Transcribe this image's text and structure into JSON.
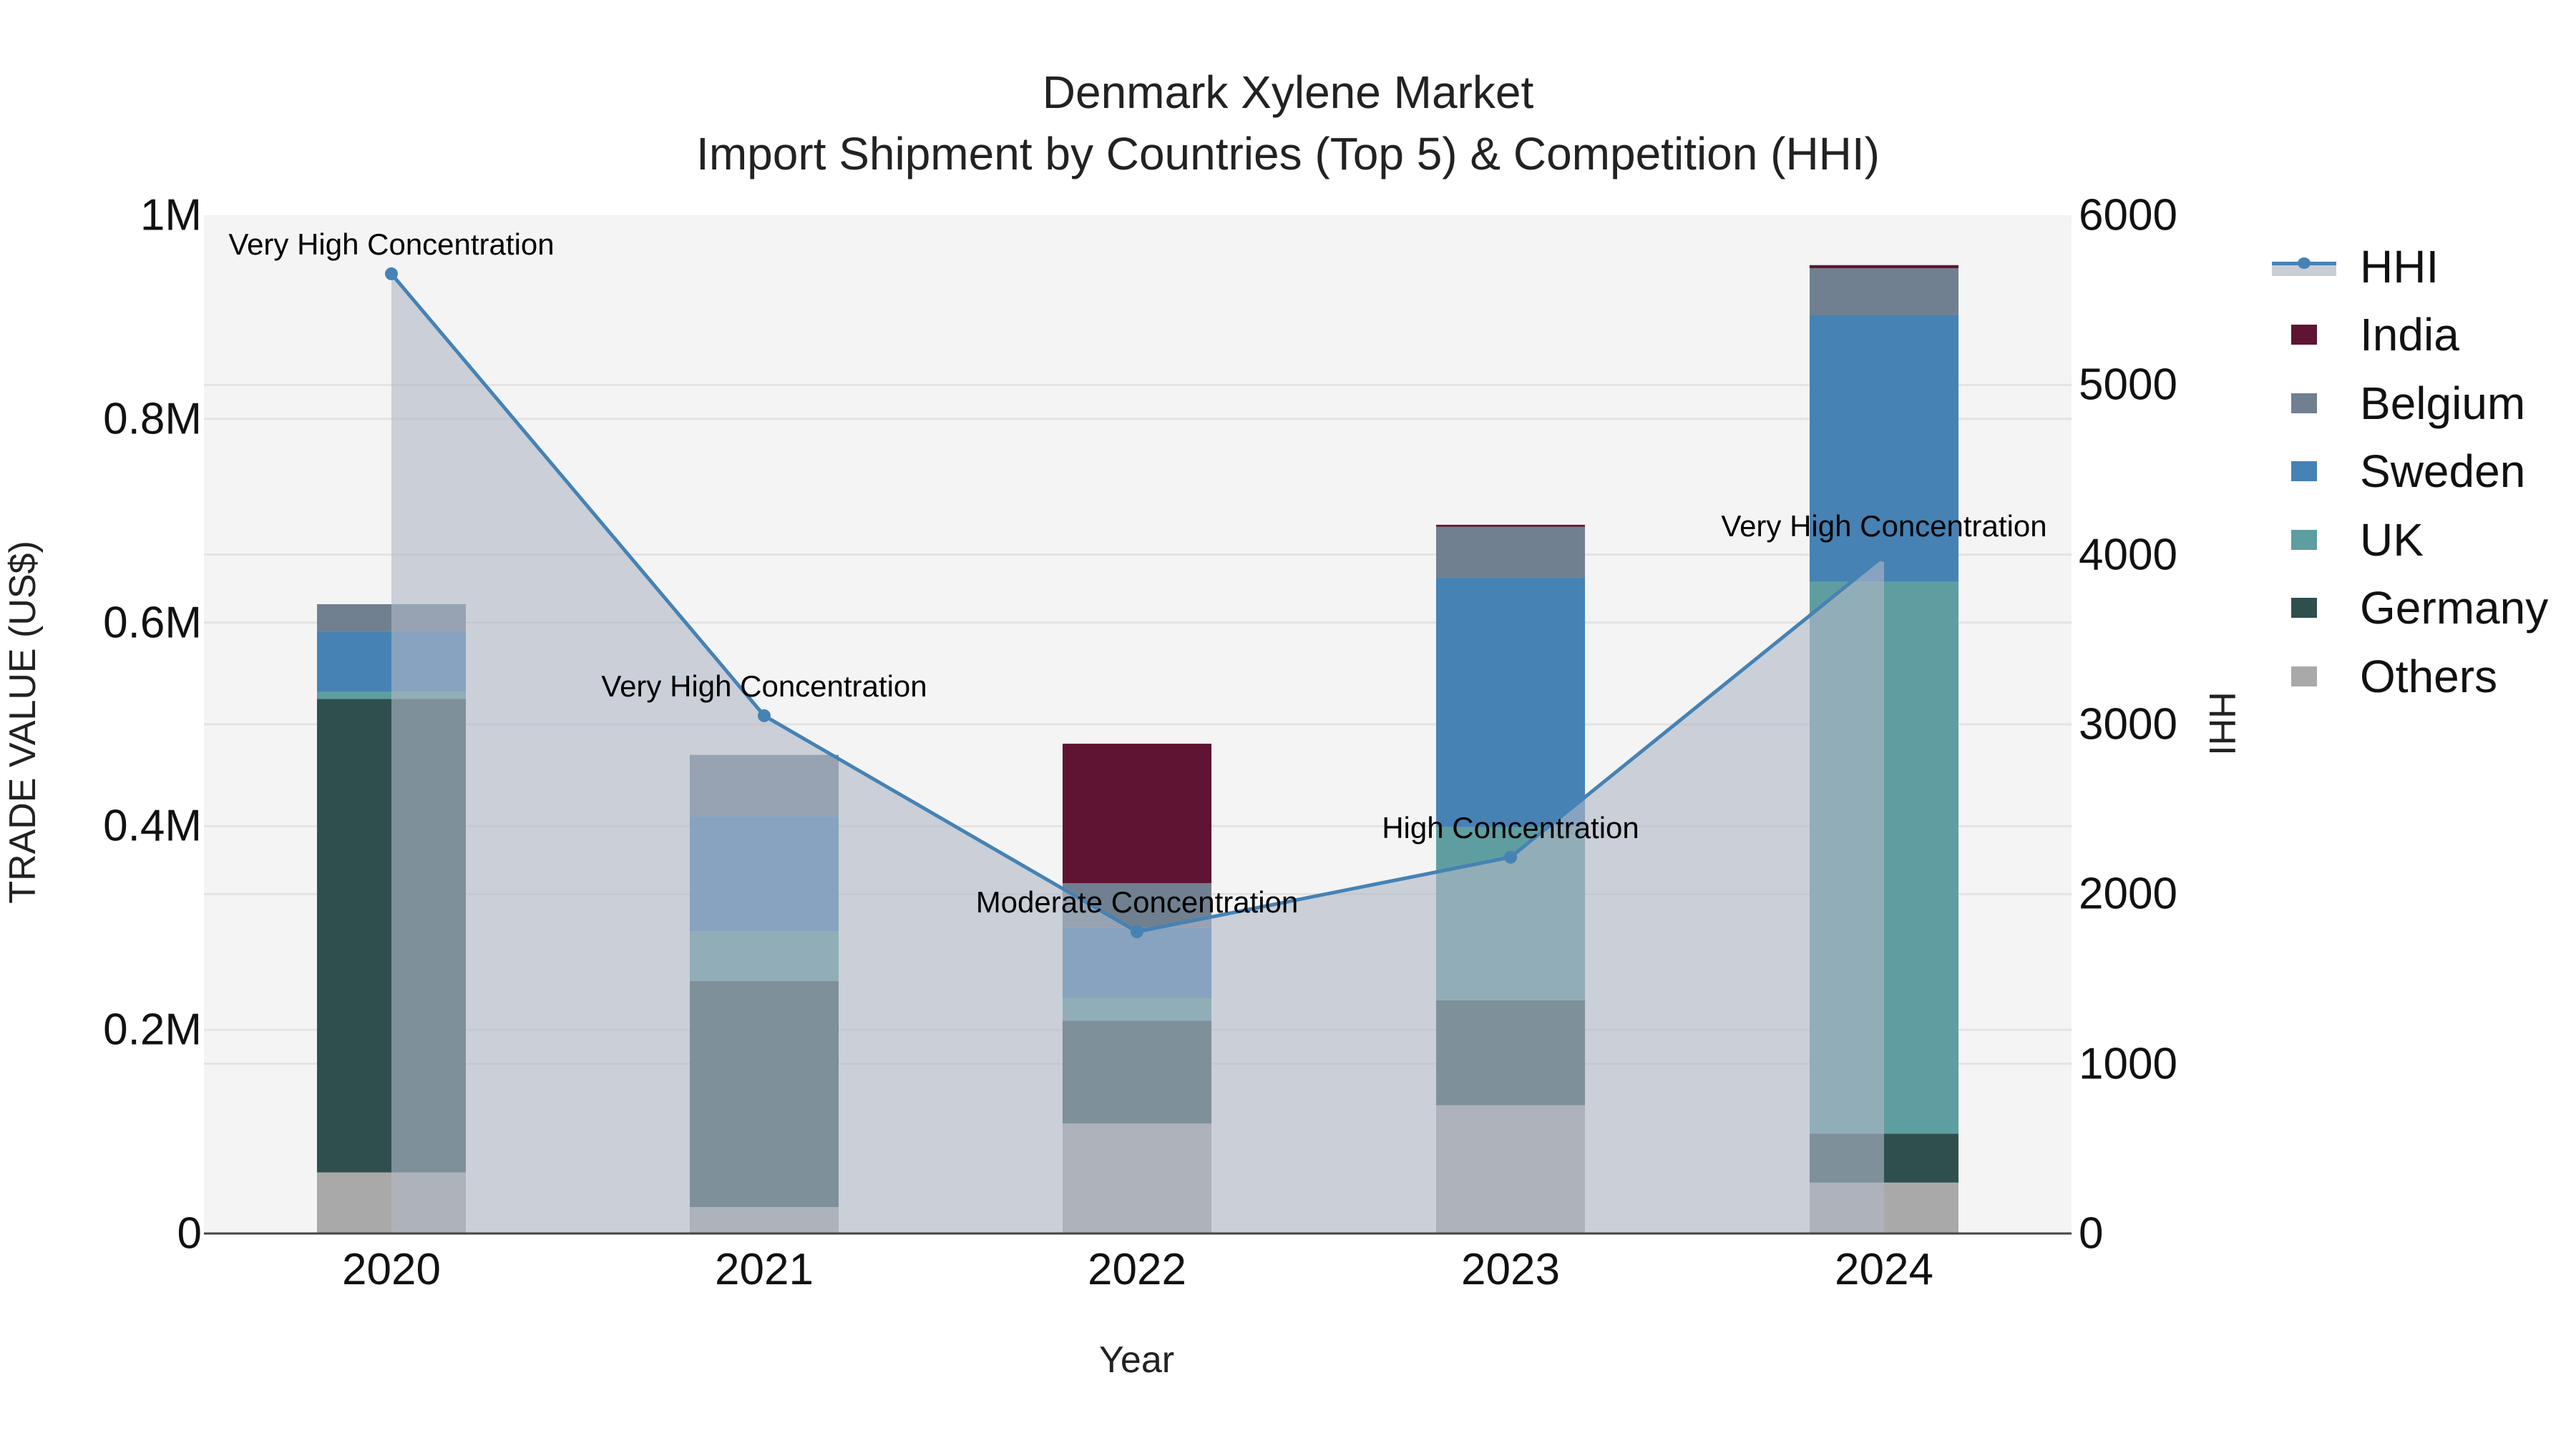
{
  "title": {
    "line1": "Denmark Xylene Market",
    "line2": "Import Shipment by Countries (Top 5) & Competition (HHI)"
  },
  "axes": {
    "x_title": "Year",
    "y_left_title": "TRADE VALUE (US$)",
    "y_right_title": "HHI",
    "y_left_ticks": [
      "0",
      "0.2M",
      "0.4M",
      "0.6M",
      "0.8M",
      "1M"
    ],
    "y_right_ticks": [
      "0",
      "1000",
      "2000",
      "3000",
      "4000",
      "5000",
      "6000"
    ]
  },
  "legend": [
    {
      "name": "HHI",
      "type": "line"
    },
    {
      "name": "India",
      "color": "#5f1434"
    },
    {
      "name": "Belgium",
      "color": "#708090"
    },
    {
      "name": "Sweden",
      "color": "#4682b4"
    },
    {
      "name": "UK",
      "color": "#5f9ea0"
    },
    {
      "name": "Germany",
      "color": "#2f4f4f"
    },
    {
      "name": "Others",
      "color": "#a9a9a9"
    }
  ],
  "colors": {
    "plot_bg": "#f4f4f4",
    "grid": "#e3e3e3",
    "hhi_line": "#4682b4",
    "hhi_fill": "rgba(176,184,198,0.62)"
  },
  "chart_data": {
    "type": "bar",
    "stacked": true,
    "title": "Denmark Xylene Market — Import Shipment by Countries (Top 5) & Competition (HHI)",
    "xlabel": "Year",
    "ylabel": "TRADE VALUE (US$)",
    "y2label": "HHI",
    "ylim": [
      0,
      1000000
    ],
    "y2lim": [
      0,
      6000
    ],
    "grid": true,
    "legend_position": "right",
    "categories": [
      "2020",
      "2021",
      "2022",
      "2023",
      "2024"
    ],
    "series": [
      {
        "name": "Others",
        "color": "#a9a9a9",
        "values": [
          60000,
          26000,
          108000,
          126000,
          50000
        ]
      },
      {
        "name": "Germany",
        "color": "#2f4f4f",
        "values": [
          465000,
          222000,
          101000,
          103000,
          48000
        ]
      },
      {
        "name": "UK",
        "color": "#5f9ea0",
        "values": [
          7000,
          49000,
          22000,
          170000,
          542000
        ]
      },
      {
        "name": "Sweden",
        "color": "#4682b4",
        "values": [
          59000,
          113000,
          69000,
          245000,
          262000
        ]
      },
      {
        "name": "Belgium",
        "color": "#708090",
        "values": [
          27000,
          60000,
          44000,
          50000,
          46000
        ]
      },
      {
        "name": "India",
        "color": "#5f1434",
        "values": [
          0,
          0,
          137000,
          2000,
          3000
        ]
      }
    ],
    "line_series": {
      "name": "HHI",
      "axis": "y2",
      "type": "line+area",
      "color": "#4682b4",
      "values": [
        5655,
        3051,
        1778,
        2217,
        3995
      ]
    },
    "annotations": [
      {
        "x": "2020",
        "text": "Very High Concentration"
      },
      {
        "x": "2021",
        "text": "Very High Concentration"
      },
      {
        "x": "2022",
        "text": "Moderate Concentration"
      },
      {
        "x": "2023",
        "text": "High Concentration"
      },
      {
        "x": "2024",
        "text": "Very High Concentration"
      }
    ]
  }
}
